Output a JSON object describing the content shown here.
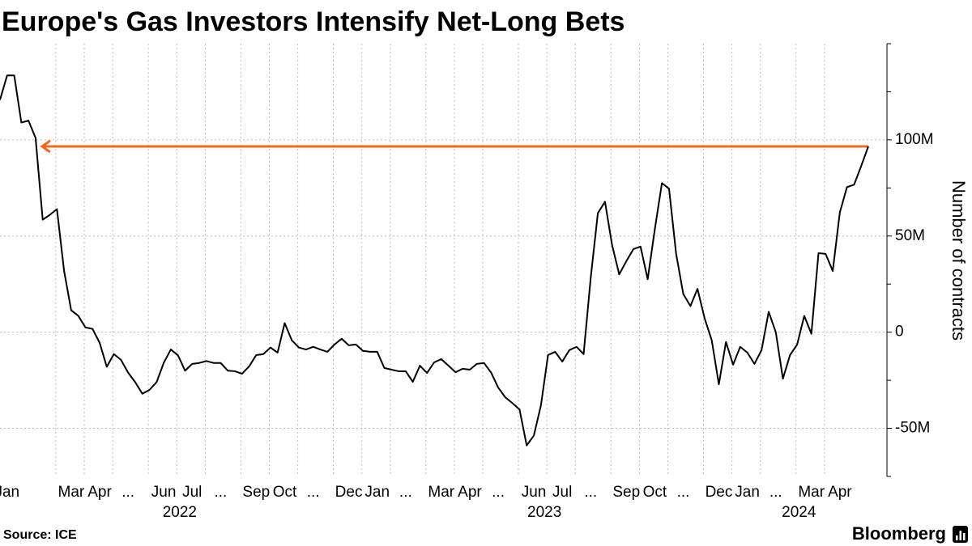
{
  "chart_data": {
    "type": "line",
    "title": "Europe's Gas Investors Intensify Net-Long Bets",
    "source": "Source: ICE",
    "brand": "Bloomberg",
    "y_axis_label": "Number of contracts",
    "ylim": [
      -75,
      150
    ],
    "yticks": [
      {
        "value": 100,
        "label": "100M"
      },
      {
        "value": 50,
        "label": "50M"
      },
      0,
      {
        "value": -50,
        "label": "-50M"
      }
    ],
    "yticks_minor": [
      150,
      125,
      75,
      25,
      -25,
      -75
    ],
    "grid": true,
    "color": "#000000",
    "annotation_color": "#f26b1d",
    "periods": [
      {
        "year": "2022",
        "categories": [
          null,
          "Jan",
          null,
          null,
          null,
          null,
          null,
          null,
          null,
          null,
          "Mar",
          null,
          null,
          null,
          "Apr",
          null,
          null,
          null,
          "...",
          null,
          null,
          null,
          null,
          "Jun",
          null,
          null,
          null,
          "Jul",
          null,
          null,
          null,
          "...",
          null,
          null,
          null,
          null,
          "Sep",
          null,
          null,
          null,
          "Oct",
          null,
          null,
          null,
          "...",
          null,
          null,
          null,
          null,
          "Dec",
          null
        ],
        "values": [
          120.8,
          133.5,
          133.5,
          109,
          110,
          101,
          58.5,
          61,
          64,
          32,
          11.4,
          8.5,
          2.5,
          1.7,
          -5.5,
          -18,
          -11.4,
          -14.4,
          -21,
          -26,
          -32,
          -30,
          -26,
          -16,
          -9,
          -12,
          -20,
          -16.5,
          -16,
          -15,
          -16,
          -16,
          -20,
          -20.3,
          -21.6,
          -17.8,
          -11.9,
          -11.4,
          -8,
          -10.6,
          4.7,
          -4.2,
          -8,
          -9,
          -7.6,
          -9,
          -10.2,
          -6.4,
          -3.4,
          -6.8,
          -6.4
        ]
      },
      {
        "year": "2023",
        "categories": [
          null,
          null,
          "Jan",
          null,
          null,
          null,
          "...",
          null,
          null,
          null,
          null,
          "Mar",
          null,
          null,
          null,
          "Apr",
          null,
          null,
          null,
          "...",
          null,
          null,
          null,
          null,
          "Jun",
          null,
          null,
          null,
          "Jul",
          null,
          null,
          null,
          "...",
          null,
          null,
          null,
          null,
          "Sep",
          null,
          null,
          null,
          "Oct",
          null,
          null,
          null,
          "...",
          null,
          null,
          null,
          null,
          "Dec",
          null
        ],
        "values": [
          -9.7,
          -10.2,
          -10.2,
          -18.6,
          -19.5,
          -20.3,
          -20.3,
          -25.8,
          -17.4,
          -21.2,
          -15.7,
          -14,
          -17.4,
          -20.8,
          -19,
          -19.5,
          -16.5,
          -16,
          -21,
          -28.8,
          -33.9,
          -36.9,
          -40.2,
          -58.9,
          -53.8,
          -38.1,
          -11.9,
          -10.2,
          -15.3,
          -9.3,
          -7.6,
          -11.4,
          28.4,
          61.9,
          67.8,
          45.3,
          30.1,
          36.9,
          43.2,
          44.5,
          27.5,
          53.4,
          77.5,
          74.6,
          40.7,
          19.9,
          13.6,
          22.5,
          7.2,
          -4.2,
          -27.1,
          -5.1
        ]
      },
      {
        "year": "2024",
        "categories": [
          null,
          null,
          "Jan",
          null,
          null,
          null,
          "...",
          null,
          null,
          null,
          null,
          "Mar",
          null,
          null,
          null,
          "Apr",
          null,
          null,
          null,
          null
        ],
        "values": [
          -16.9,
          -7.6,
          -10.6,
          -16.5,
          -9.3,
          10.6,
          0,
          -24.2,
          -11.9,
          -6.4,
          8.5,
          -0.8,
          41.1,
          40.7,
          31.8,
          62.3,
          75.4,
          76.7,
          86.4,
          96.6
        ]
      }
    ]
  }
}
